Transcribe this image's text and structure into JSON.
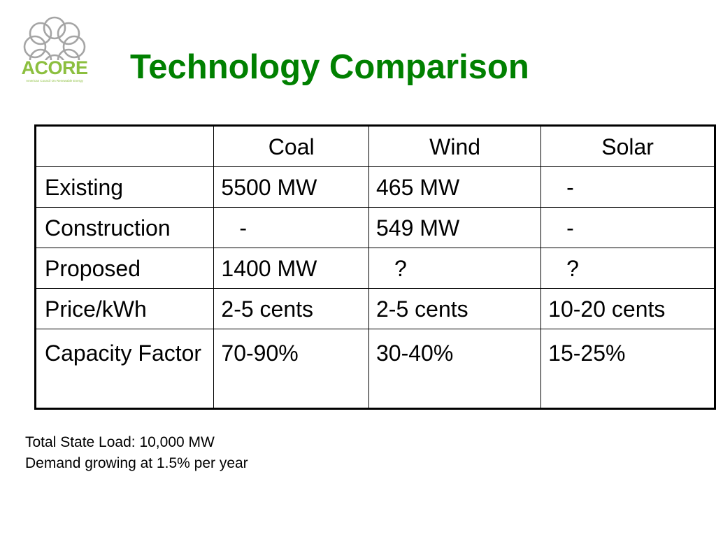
{
  "logo": {
    "word": "ACORE",
    "tagline": "American Council On Renewable Energy"
  },
  "slide": {
    "title": "Technology Comparison"
  },
  "table": {
    "headers": [
      "",
      "Coal",
      "Wind",
      "Solar"
    ],
    "rows": [
      {
        "label": "Existing",
        "coal": "5500 MW",
        "wind": "465 MW",
        "solar": "-"
      },
      {
        "label": "Construction",
        "coal": "-",
        "wind": "549 MW",
        "solar": "-"
      },
      {
        "label": "Proposed",
        "coal": "1400 MW",
        "wind": "?",
        "solar": "?"
      },
      {
        "label": "Price/kWh",
        "coal": "2-5 cents",
        "wind": "2-5 cents",
        "solar": "10-20 cents"
      },
      {
        "label": "Capacity Factor",
        "coal": "70-90%",
        "wind": "30-40%",
        "solar": "15-25%"
      }
    ]
  },
  "notes": {
    "line1": "Total State Load: 10,000 MW",
    "line2": "Demand growing at 1.5% per year"
  },
  "colors": {
    "title": "#008000",
    "logo_green": "#8cbf3f",
    "logo_grey": "#a5a5a5"
  }
}
